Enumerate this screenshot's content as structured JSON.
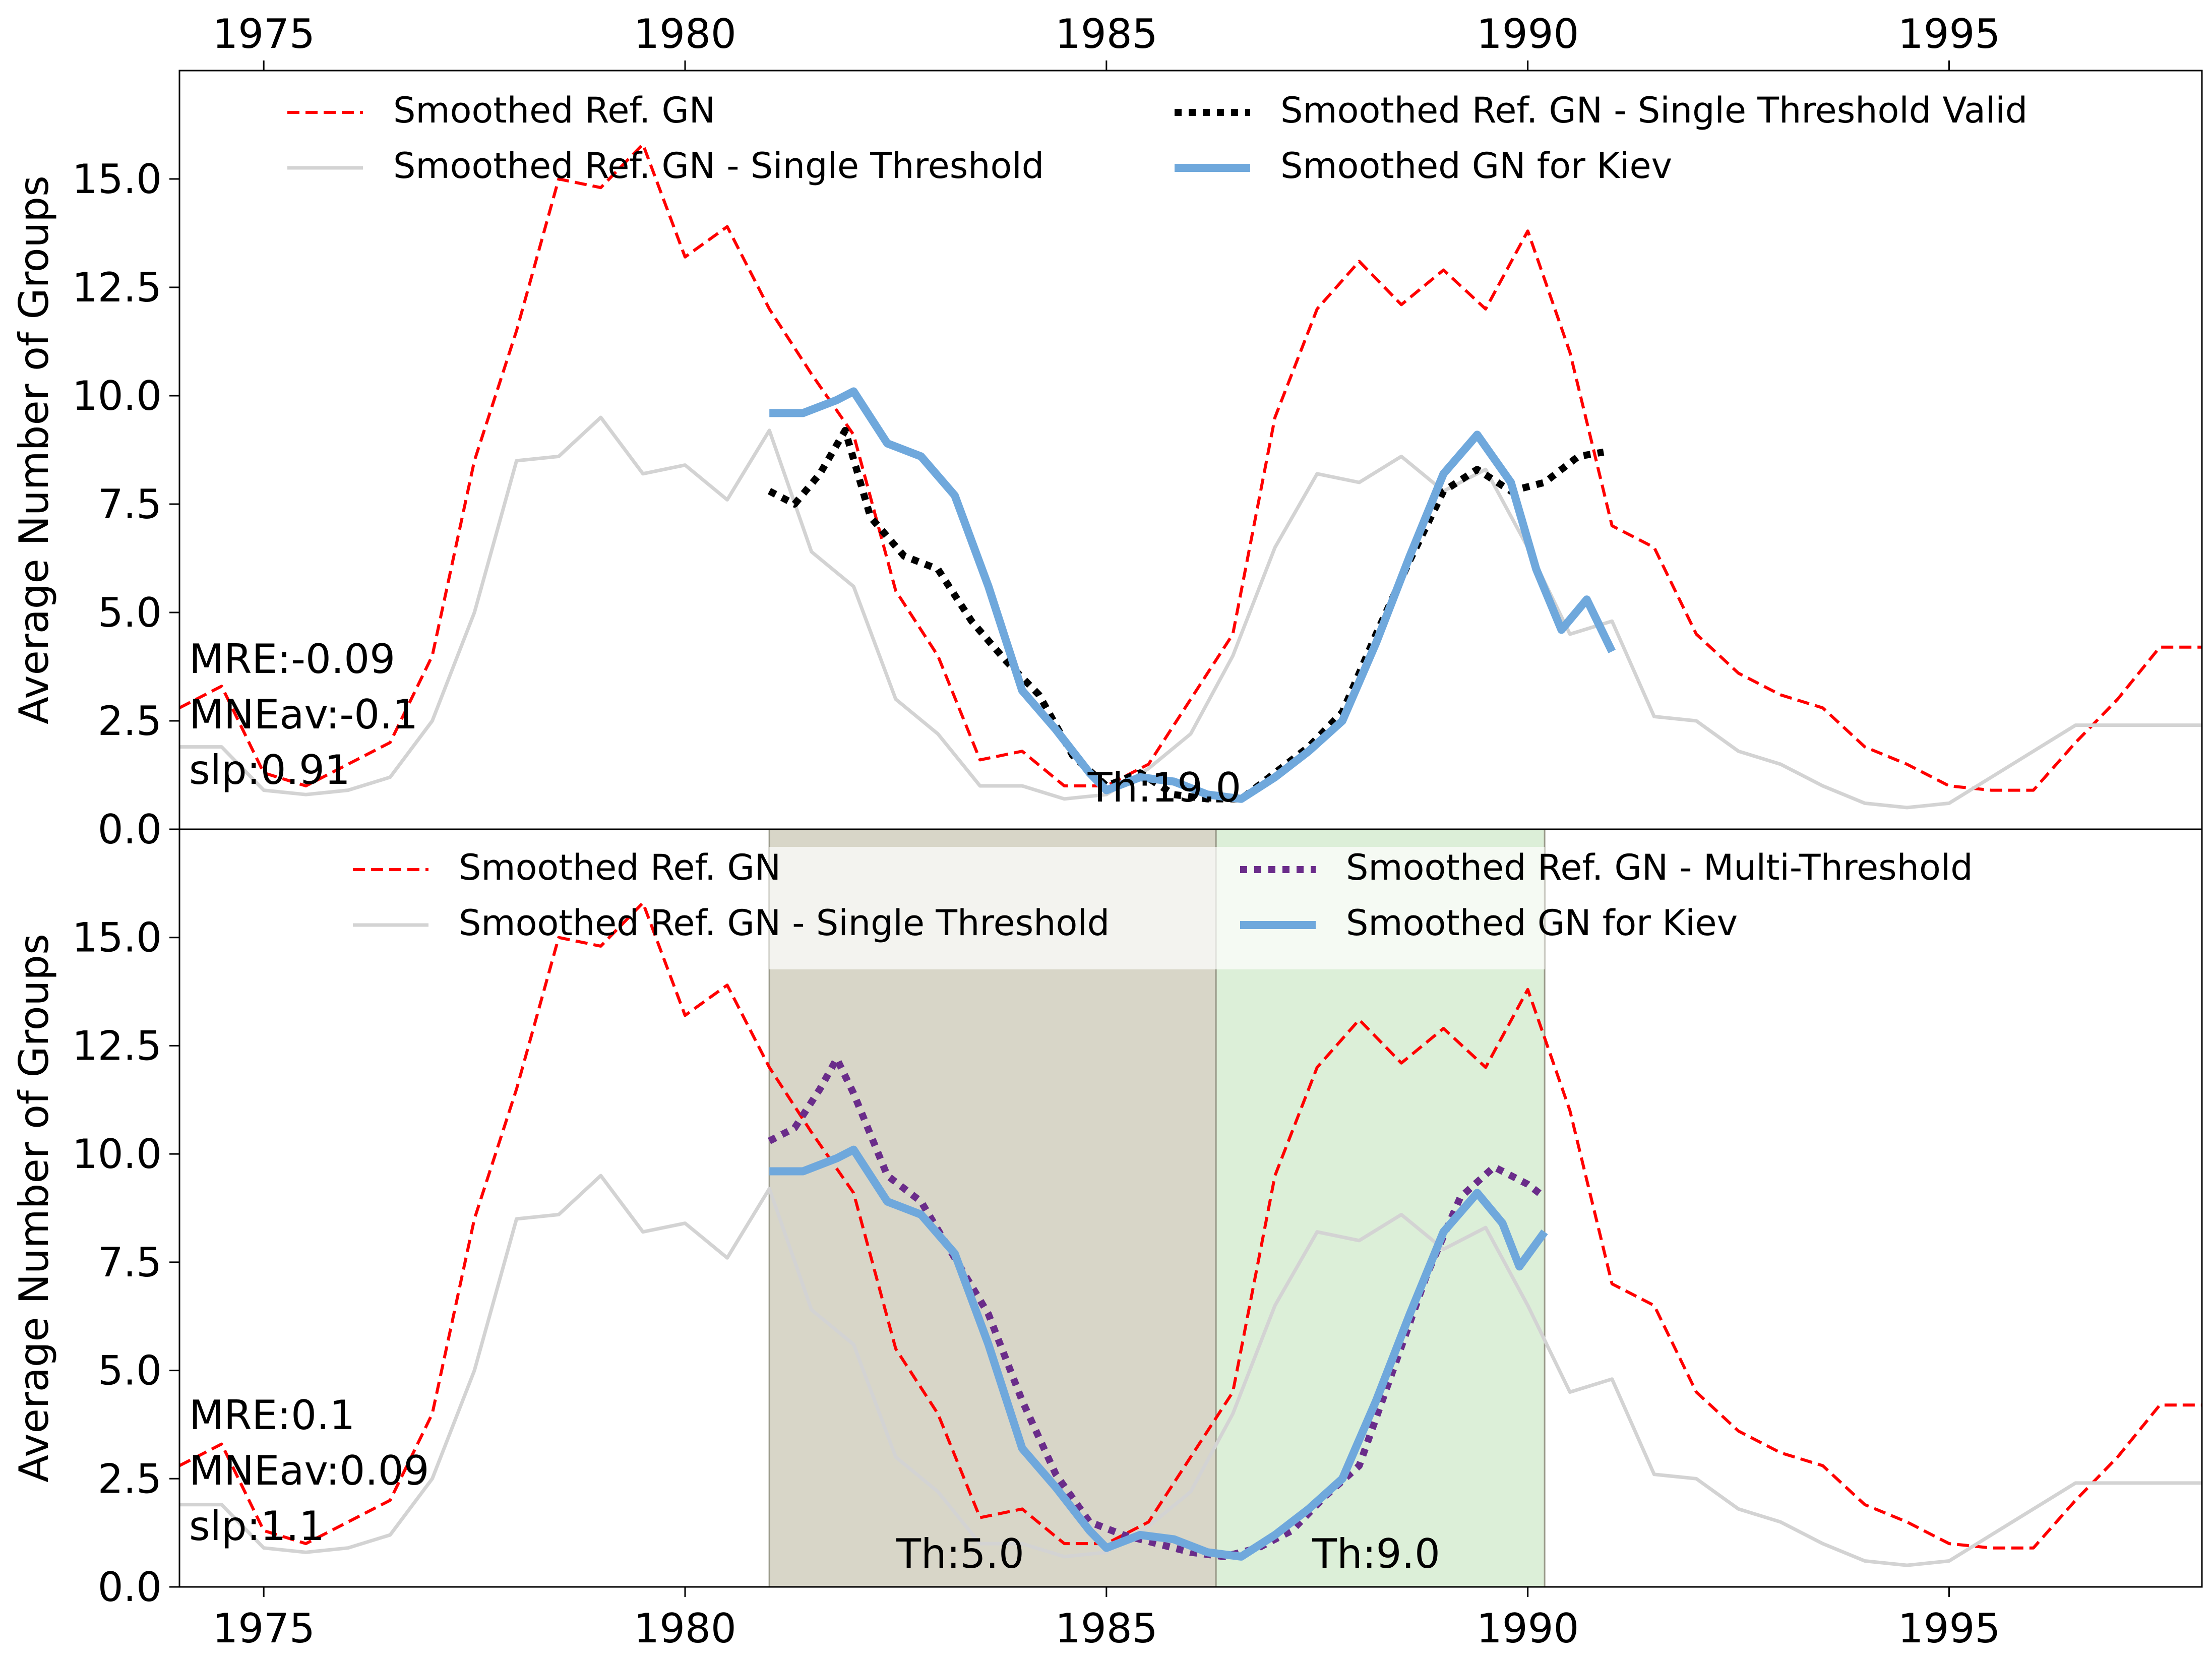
{
  "chart_data": [
    {
      "type": "line",
      "panel": "top",
      "xlim": [
        1974,
        1998
      ],
      "ylim": [
        0,
        17.5
      ],
      "ylabel": "Average Number of Groups",
      "x_ticks": [
        "1975",
        "1980",
        "1985",
        "1990",
        "1995"
      ],
      "x_tick_values": [
        1975,
        1980,
        1985,
        1990,
        1995
      ],
      "x_tick_position": "top",
      "y_ticks": [
        "0.0",
        "2.5",
        "5.0",
        "7.5",
        "10.0",
        "12.5",
        "15.0"
      ],
      "y_tick_values": [
        0,
        2.5,
        5,
        7.5,
        10,
        12.5,
        15
      ],
      "grid": false,
      "legend_position": "top",
      "series": [
        {
          "name": "Smoothed Ref. GN",
          "style": "dashed",
          "color": "#ff0000",
          "x": [
            1974.0,
            1974.5,
            1975.0,
            1975.5,
            1976.0,
            1976.5,
            1977.0,
            1977.5,
            1978.0,
            1978.5,
            1979.0,
            1979.5,
            1980.0,
            1980.5,
            1981.0,
            1981.5,
            1982.0,
            1982.5,
            1983.0,
            1983.5,
            1984.0,
            1984.5,
            1985.0,
            1985.5,
            1986.0,
            1986.5,
            1987.0,
            1987.5,
            1988.0,
            1988.5,
            1989.0,
            1989.5,
            1990.0,
            1990.5,
            1991.0,
            1991.5,
            1992.0,
            1992.5,
            1993.0,
            1993.5,
            1994.0,
            1994.5,
            1995.0,
            1995.5,
            1996.0,
            1996.5,
            1997.0,
            1997.5,
            1998.0
          ],
          "y": [
            2.8,
            3.3,
            1.3,
            1.0,
            1.5,
            2.0,
            4.0,
            8.5,
            11.5,
            15.0,
            14.8,
            15.8,
            13.2,
            13.9,
            12.0,
            10.5,
            9.1,
            5.5,
            4.0,
            1.6,
            1.8,
            1.0,
            1.0,
            1.5,
            3.0,
            4.5,
            9.5,
            12.0,
            13.1,
            12.1,
            12.9,
            12.0,
            13.8,
            11.0,
            7.0,
            6.5,
            4.5,
            3.6,
            3.1,
            2.8,
            1.9,
            1.5,
            1.0,
            0.9,
            0.9,
            2.0,
            3.0,
            4.2,
            4.2
          ]
        },
        {
          "name": "Smoothed Ref. GN - Single Threshold",
          "style": "solid",
          "color": "#d3d3d3",
          "x": [
            1974.0,
            1974.5,
            1975.0,
            1975.5,
            1976.0,
            1976.5,
            1977.0,
            1977.5,
            1978.0,
            1978.5,
            1979.0,
            1979.5,
            1980.0,
            1980.5,
            1981.0,
            1981.5,
            1982.0,
            1982.5,
            1983.0,
            1983.5,
            1984.0,
            1984.5,
            1985.0,
            1985.5,
            1986.0,
            1986.5,
            1987.0,
            1987.5,
            1988.0,
            1988.5,
            1989.0,
            1989.5,
            1990.0,
            1990.5,
            1991.0,
            1991.5,
            1992.0,
            1992.5,
            1993.0,
            1993.5,
            1994.0,
            1994.5,
            1995.0,
            1995.5,
            1996.0,
            1996.5,
            1997.0,
            1997.5,
            1998.0
          ],
          "y": [
            1.9,
            1.9,
            0.9,
            0.8,
            0.9,
            1.2,
            2.5,
            5.0,
            8.5,
            8.6,
            9.5,
            8.2,
            8.4,
            7.6,
            9.2,
            6.4,
            5.6,
            3.0,
            2.2,
            1.0,
            1.0,
            0.7,
            0.8,
            1.4,
            2.2,
            4.0,
            6.5,
            8.2,
            8.0,
            8.6,
            7.8,
            8.3,
            6.5,
            4.5,
            4.8,
            2.6,
            2.5,
            1.8,
            1.5,
            1.0,
            0.6,
            0.5,
            0.6,
            1.2,
            1.8,
            2.4,
            2.4,
            2.4,
            2.4
          ]
        },
        {
          "name": "Smoothed Ref. GN - Single Threshold Valid",
          "style": "dotted",
          "color": "#000000",
          "x": [
            1981.0,
            1981.3,
            1981.6,
            1981.9,
            1982.2,
            1982.6,
            1983.0,
            1983.4,
            1983.8,
            1984.2,
            1984.6,
            1985.0,
            1985.4,
            1985.8,
            1986.2,
            1986.6,
            1987.0,
            1987.4,
            1987.8,
            1988.2,
            1988.6,
            1989.0,
            1989.4,
            1989.8,
            1990.2,
            1990.6,
            1990.9
          ],
          "y": [
            7.8,
            7.5,
            8.2,
            9.2,
            7.2,
            6.3,
            6.0,
            4.8,
            3.9,
            3.1,
            1.7,
            1.0,
            1.3,
            0.8,
            0.7,
            0.7,
            1.3,
            1.9,
            2.7,
            4.5,
            6.2,
            7.8,
            8.3,
            7.8,
            8.0,
            8.6,
            8.7
          ]
        },
        {
          "name": "Smoothed GN for Kiev",
          "style": "solid",
          "color": "#6fa8dc",
          "x": [
            1981.0,
            1981.4,
            1981.8,
            1982.0,
            1982.4,
            1982.8,
            1983.2,
            1983.6,
            1984.0,
            1984.4,
            1984.8,
            1985.0,
            1985.4,
            1985.8,
            1986.2,
            1986.6,
            1987.0,
            1987.4,
            1987.8,
            1988.2,
            1988.6,
            1989.0,
            1989.4,
            1989.8,
            1990.1,
            1990.4,
            1990.7,
            1991.0
          ],
          "y": [
            9.6,
            9.6,
            9.9,
            10.1,
            8.9,
            8.6,
            7.7,
            5.6,
            3.2,
            2.3,
            1.3,
            0.9,
            1.2,
            1.1,
            0.8,
            0.7,
            1.2,
            1.8,
            2.5,
            4.3,
            6.3,
            8.2,
            9.1,
            8.0,
            6.0,
            4.6,
            5.3,
            4.1
          ]
        }
      ],
      "annotations": [
        "MRE:-0.09",
        "MNEav:-0.1",
        "slp:0.91",
        "Th:19.0"
      ]
    },
    {
      "type": "line",
      "panel": "bottom",
      "xlim": [
        1974,
        1998
      ],
      "ylim": [
        0,
        17.5
      ],
      "ylabel": "Average Number of Groups",
      "x_ticks": [
        "1975",
        "1980",
        "1985",
        "1990",
        "1995"
      ],
      "x_tick_values": [
        1975,
        1980,
        1985,
        1990,
        1995
      ],
      "x_tick_position": "bottom",
      "y_ticks": [
        "0.0",
        "2.5",
        "5.0",
        "7.5",
        "10.0",
        "12.5",
        "15.0"
      ],
      "y_tick_values": [
        0,
        2.5,
        5,
        7.5,
        10,
        12.5,
        15
      ],
      "grid": false,
      "legend_position": "top",
      "shaded_regions": [
        {
          "x_start": 1981.0,
          "x_end": 1986.3,
          "color": "#d8d6c8",
          "label": "Th:5.0"
        },
        {
          "x_start": 1986.3,
          "x_end": 1990.2,
          "color": "#dcefd8",
          "label": "Th:9.0"
        }
      ],
      "series": [
        {
          "name": "Smoothed Ref. GN",
          "style": "dashed",
          "color": "#ff0000",
          "x": [
            1974.0,
            1974.5,
            1975.0,
            1975.5,
            1976.0,
            1976.5,
            1977.0,
            1977.5,
            1978.0,
            1978.5,
            1979.0,
            1979.5,
            1980.0,
            1980.5,
            1981.0,
            1981.5,
            1982.0,
            1982.5,
            1983.0,
            1983.5,
            1984.0,
            1984.5,
            1985.0,
            1985.5,
            1986.0,
            1986.5,
            1987.0,
            1987.5,
            1988.0,
            1988.5,
            1989.0,
            1989.5,
            1990.0,
            1990.5,
            1991.0,
            1991.5,
            1992.0,
            1992.5,
            1993.0,
            1993.5,
            1994.0,
            1994.5,
            1995.0,
            1995.5,
            1996.0,
            1996.5,
            1997.0,
            1997.5,
            1998.0
          ],
          "y": [
            2.8,
            3.3,
            1.3,
            1.0,
            1.5,
            2.0,
            4.0,
            8.5,
            11.5,
            15.0,
            14.8,
            15.8,
            13.2,
            13.9,
            12.0,
            10.5,
            9.1,
            5.5,
            4.0,
            1.6,
            1.8,
            1.0,
            1.0,
            1.5,
            3.0,
            4.5,
            9.5,
            12.0,
            13.1,
            12.1,
            12.9,
            12.0,
            13.8,
            11.0,
            7.0,
            6.5,
            4.5,
            3.6,
            3.1,
            2.8,
            1.9,
            1.5,
            1.0,
            0.9,
            0.9,
            2.0,
            3.0,
            4.2,
            4.2
          ]
        },
        {
          "name": "Smoothed Ref. GN - Single Threshold",
          "style": "solid",
          "color": "#d3d3d3",
          "x": [
            1974.0,
            1974.5,
            1975.0,
            1975.5,
            1976.0,
            1976.5,
            1977.0,
            1977.5,
            1978.0,
            1978.5,
            1979.0,
            1979.5,
            1980.0,
            1980.5,
            1981.0,
            1981.5,
            1982.0,
            1982.5,
            1983.0,
            1983.5,
            1984.0,
            1984.5,
            1985.0,
            1985.5,
            1986.0,
            1986.5,
            1987.0,
            1987.5,
            1988.0,
            1988.5,
            1989.0,
            1989.5,
            1990.0,
            1990.5,
            1991.0,
            1991.5,
            1992.0,
            1992.5,
            1993.0,
            1993.5,
            1994.0,
            1994.5,
            1995.0,
            1995.5,
            1996.0,
            1996.5,
            1997.0,
            1997.5,
            1998.0
          ],
          "y": [
            1.9,
            1.9,
            0.9,
            0.8,
            0.9,
            1.2,
            2.5,
            5.0,
            8.5,
            8.6,
            9.5,
            8.2,
            8.4,
            7.6,
            9.2,
            6.4,
            5.6,
            3.0,
            2.2,
            1.0,
            1.0,
            0.7,
            0.8,
            1.4,
            2.2,
            4.0,
            6.5,
            8.2,
            8.0,
            8.6,
            7.8,
            8.3,
            6.5,
            4.5,
            4.8,
            2.6,
            2.5,
            1.8,
            1.5,
            1.0,
            0.6,
            0.5,
            0.6,
            1.2,
            1.8,
            2.4,
            2.4,
            2.4,
            2.4
          ]
        },
        {
          "name": "Smoothed Ref. GN - Multi-Threshold",
          "style": "dotted",
          "color": "#6a2c8a",
          "x": [
            1981.0,
            1981.3,
            1981.6,
            1981.8,
            1982.0,
            1982.4,
            1982.8,
            1983.2,
            1983.6,
            1984.0,
            1984.4,
            1984.8,
            1985.2,
            1985.6,
            1986.0,
            1986.4,
            1986.8,
            1987.2,
            1987.6,
            1988.0,
            1988.4,
            1988.8,
            1989.2,
            1989.6,
            1990.0,
            1990.2
          ],
          "y": [
            10.3,
            10.6,
            11.5,
            12.2,
            11.4,
            9.5,
            8.9,
            7.6,
            6.3,
            4.3,
            2.6,
            1.5,
            1.2,
            1.0,
            0.8,
            0.7,
            0.9,
            1.3,
            2.1,
            2.8,
            5.0,
            7.2,
            9.0,
            9.7,
            9.3,
            9.0
          ]
        },
        {
          "name": "Smoothed GN for Kiev",
          "style": "solid",
          "color": "#6fa8dc",
          "x": [
            1981.0,
            1981.4,
            1981.8,
            1982.0,
            1982.4,
            1982.8,
            1983.2,
            1983.6,
            1984.0,
            1984.4,
            1984.8,
            1985.0,
            1985.4,
            1985.8,
            1986.2,
            1986.6,
            1987.0,
            1987.4,
            1987.8,
            1988.2,
            1988.6,
            1989.0,
            1989.4,
            1989.7,
            1989.9,
            1990.2
          ],
          "y": [
            9.6,
            9.6,
            9.9,
            10.1,
            8.9,
            8.6,
            7.7,
            5.6,
            3.2,
            2.3,
            1.3,
            0.9,
            1.2,
            1.1,
            0.8,
            0.7,
            1.2,
            1.8,
            2.5,
            4.3,
            6.3,
            8.2,
            9.1,
            8.4,
            7.4,
            8.2
          ]
        }
      ],
      "annotations": [
        "MRE:0.1",
        "MNEav:0.09",
        "slp:1.1",
        "Th:5.0",
        "Th:9.0"
      ]
    }
  ]
}
